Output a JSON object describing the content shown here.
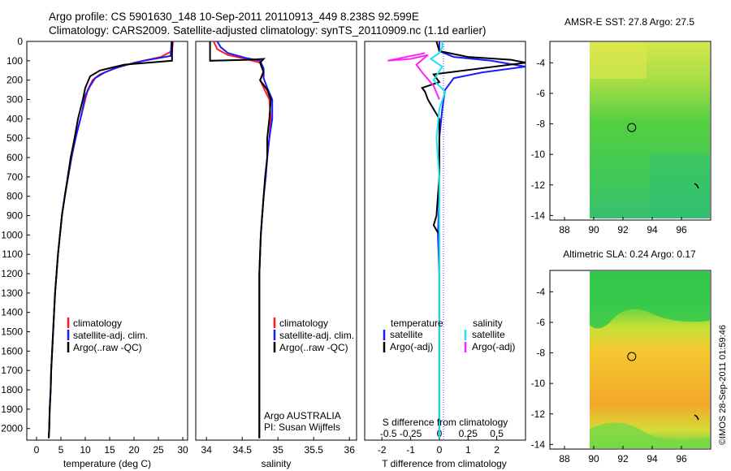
{
  "header": {
    "line1": "Argo profile: CS 5901630_148 10-Sep-2011 20110913_449 8.238S 92.599E",
    "line2": "Climatology: CARS2009. Satellite-adjusted climatology: synTS_20110909.nc (1.1d earlier)"
  },
  "colors": {
    "climatology": "#ff1a1a",
    "satellite": "#1a1aff",
    "argo": "#000000",
    "sal_satellite": "#22e0f0",
    "sal_argo": "#ff22ff"
  },
  "timestamp": "©IMOS 28-Sep-2011 01:59:46",
  "chart_data": [
    {
      "type": "line",
      "id": "temperature",
      "xlabel": "temperature (deg C)",
      "xlim": [
        -2,
        31
      ],
      "ylim": [
        0,
        2060
      ],
      "xticks": [
        0,
        5,
        10,
        15,
        20,
        25,
        30
      ],
      "yticks": [
        0,
        100,
        200,
        300,
        400,
        500,
        600,
        700,
        800,
        900,
        1000,
        1100,
        1200,
        1300,
        1400,
        1500,
        1600,
        1700,
        1800,
        1900,
        2000
      ],
      "legend": [
        "climatology",
        "satellite-adj. clim.",
        "Argo(..raw -QC)"
      ],
      "series": [
        {
          "name": "climatology",
          "color_key": "climatology",
          "points": [
            [
              28,
              0
            ],
            [
              27.8,
              50
            ],
            [
              25.5,
              80
            ],
            [
              20,
              110
            ],
            [
              16,
              140
            ],
            [
              13,
              170
            ],
            [
              11.5,
              200
            ],
            [
              10.5,
              250
            ],
            [
              10,
              300
            ],
            [
              9,
              400
            ],
            [
              8,
              500
            ],
            [
              7.2,
              600
            ],
            [
              6.5,
              700
            ],
            [
              5.8,
              800
            ],
            [
              5.2,
              900
            ],
            [
              4.8,
              1000
            ],
            [
              4.4,
              1100
            ],
            [
              4.1,
              1200
            ],
            [
              3.8,
              1300
            ],
            [
              3.6,
              1400
            ],
            [
              3.4,
              1500
            ],
            [
              3.2,
              1600
            ],
            [
              3,
              1700
            ],
            [
              2.9,
              1800
            ],
            [
              2.7,
              1900
            ],
            [
              2.6,
              2000
            ],
            [
              2.5,
              2050
            ]
          ]
        },
        {
          "name": "satellite-adj. clim.",
          "color_key": "satellite",
          "points": [
            [
              27.7,
              0
            ],
            [
              27.6,
              40
            ],
            [
              27.5,
              75
            ],
            [
              22,
              100
            ],
            [
              17,
              130
            ],
            [
              14,
              160
            ],
            [
              12,
              190
            ],
            [
              11,
              230
            ],
            [
              10,
              280
            ],
            [
              9.2,
              380
            ],
            [
              8.2,
              480
            ],
            [
              7.3,
              580
            ],
            [
              6.6,
              680
            ],
            [
              5.9,
              780
            ],
            [
              5.3,
              880
            ],
            [
              4.8,
              1000
            ],
            [
              4.4,
              1100
            ],
            [
              4.1,
              1200
            ],
            [
              3.8,
              1300
            ],
            [
              3.6,
              1400
            ],
            [
              3.4,
              1500
            ],
            [
              3.2,
              1600
            ],
            [
              3,
              1700
            ],
            [
              2.9,
              1800
            ],
            [
              2.7,
              1900
            ],
            [
              2.6,
              2000
            ],
            [
              2.5,
              2050
            ]
          ]
        },
        {
          "name": "Argo(..raw -QC)",
          "color_key": "argo",
          "points": [
            [
              27.8,
              0
            ],
            [
              27.8,
              100
            ],
            [
              18,
              120
            ],
            [
              13,
              150
            ],
            [
              11,
              180
            ],
            [
              10,
              240
            ],
            [
              9.5,
              300
            ],
            [
              8.5,
              400
            ],
            [
              7.8,
              500
            ],
            [
              7,
              600
            ],
            [
              6.4,
              700
            ],
            [
              5.8,
              800
            ],
            [
              5.2,
              900
            ],
            [
              4.8,
              1000
            ],
            [
              4.4,
              1100
            ],
            [
              4.1,
              1200
            ],
            [
              3.8,
              1300
            ],
            [
              3.6,
              1400
            ],
            [
              3.4,
              1500
            ],
            [
              3.2,
              1600
            ],
            [
              3,
              1700
            ],
            [
              2.9,
              1800
            ],
            [
              2.7,
              1900
            ],
            [
              2.6,
              2000
            ],
            [
              2.5,
              2050
            ]
          ]
        }
      ]
    },
    {
      "type": "line",
      "id": "salinity",
      "xlabel": "salinity",
      "xlim": [
        33.85,
        36.1
      ],
      "ylim": [
        0,
        2060
      ],
      "xticks": [
        34,
        34.5,
        35,
        35.5,
        36
      ],
      "xtick_labels": [
        "34",
        "34.5",
        "35",
        "35.5",
        "36"
      ],
      "legend": [
        "climatology",
        "satellite-adj. clim.",
        "Argo(..raw -QC)"
      ],
      "annotation": [
        "Argo AUSTRALIA",
        "PI: Susan Wijffels"
      ],
      "series": [
        {
          "name": "climatology",
          "color_key": "climatology",
          "points": [
            [
              34.1,
              0
            ],
            [
              34.15,
              40
            ],
            [
              34.3,
              70
            ],
            [
              34.55,
              90
            ],
            [
              34.75,
              110
            ],
            [
              34.8,
              150
            ],
            [
              34.75,
              200
            ],
            [
              34.8,
              240
            ],
            [
              34.88,
              300
            ],
            [
              34.9,
              400
            ],
            [
              34.88,
              500
            ],
            [
              34.85,
              600
            ],
            [
              34.83,
              700
            ],
            [
              34.8,
              800
            ],
            [
              34.78,
              900
            ],
            [
              34.76,
              1000
            ],
            [
              34.75,
              1100
            ],
            [
              34.74,
              1200
            ],
            [
              34.74,
              1400
            ],
            [
              34.74,
              1600
            ],
            [
              34.74,
              1800
            ],
            [
              34.74,
              2050
            ]
          ]
        },
        {
          "name": "satellite-adj. clim.",
          "color_key": "satellite",
          "points": [
            [
              34.15,
              0
            ],
            [
              34.2,
              30
            ],
            [
              34.3,
              60
            ],
            [
              34.55,
              85
            ],
            [
              34.75,
              100
            ],
            [
              34.8,
              140
            ],
            [
              34.8,
              190
            ],
            [
              34.85,
              240
            ],
            [
              34.92,
              300
            ],
            [
              34.92,
              400
            ],
            [
              34.88,
              500
            ],
            [
              34.85,
              600
            ],
            [
              34.83,
              700
            ],
            [
              34.8,
              800
            ],
            [
              34.78,
              900
            ],
            [
              34.76,
              1000
            ],
            [
              34.75,
              1100
            ],
            [
              34.74,
              1200
            ],
            [
              34.74,
              1400
            ],
            [
              34.74,
              1600
            ],
            [
              34.74,
              1800
            ],
            [
              34.74,
              2050
            ]
          ]
        },
        {
          "name": "Argo(..raw -QC)",
          "color_key": "argo",
          "points": [
            [
              34.05,
              0
            ],
            [
              34.05,
              100
            ],
            [
              34.6,
              95
            ],
            [
              34.8,
              90
            ],
            [
              34.75,
              110
            ],
            [
              34.8,
              160
            ],
            [
              34.75,
              200
            ],
            [
              34.85,
              250
            ],
            [
              34.9,
              300
            ],
            [
              34.88,
              400
            ],
            [
              34.85,
              500
            ],
            [
              34.85,
              600
            ],
            [
              34.82,
              700
            ],
            [
              34.8,
              800
            ],
            [
              34.78,
              900
            ],
            [
              34.76,
              1000
            ],
            [
              34.75,
              1100
            ],
            [
              34.74,
              1200
            ],
            [
              34.74,
              1400
            ],
            [
              34.74,
              1600
            ],
            [
              34.74,
              1800
            ],
            [
              34.74,
              2050
            ]
          ]
        }
      ]
    },
    {
      "type": "line",
      "id": "differences",
      "xlabel": "T difference from climatology",
      "xlabel_top": "S difference from climatology",
      "xlim": [
        -2.6,
        3
      ],
      "ylim": [
        0,
        2060
      ],
      "xticks": [
        -2,
        -1,
        0,
        1,
        2
      ],
      "xtick_labels": [
        "-2",
        "-1",
        "0",
        "1",
        "2"
      ],
      "sticks": [
        -2,
        -1,
        0,
        1,
        2
      ],
      "stick_labels": [
        "-0.5",
        "-0.25",
        "0",
        "0.25",
        "0.5"
      ],
      "legend_titles": [
        "temperature",
        "salinity"
      ],
      "legend": [
        "satellite",
        "Argo(-adj)",
        "satellite",
        "Argo(-adj)"
      ],
      "series": [
        {
          "name": "satellite",
          "color_key": "satellite",
          "points": [
            [
              0,
              0
            ],
            [
              0,
              50
            ],
            [
              0.5,
              80
            ],
            [
              1.8,
              100
            ],
            [
              3,
              130
            ],
            [
              1.5,
              160
            ],
            [
              0.5,
              190
            ],
            [
              0.2,
              250
            ],
            [
              0.1,
              350
            ],
            [
              0,
              500
            ],
            [
              0,
              800
            ],
            [
              -0.05,
              1000
            ],
            [
              0,
              1200
            ],
            [
              0,
              1500
            ],
            [
              0,
              2050
            ]
          ]
        },
        {
          "name": "Argo(-adj)",
          "color_key": "argo",
          "points": [
            [
              -0.1,
              0
            ],
            [
              0,
              50
            ],
            [
              1,
              80
            ],
            [
              2.5,
              95
            ],
            [
              3,
              110
            ],
            [
              -0.2,
              170
            ],
            [
              0,
              210
            ],
            [
              -0.6,
              240
            ],
            [
              -0.5,
              260
            ],
            [
              -0.4,
              300
            ],
            [
              0,
              400
            ],
            [
              0,
              700
            ],
            [
              -0.1,
              900
            ],
            [
              -0.2,
              950
            ],
            [
              0,
              1000
            ],
            [
              0,
              1300
            ],
            [
              0,
              1600
            ],
            [
              0,
              2050
            ]
          ]
        },
        {
          "name": "satellite",
          "color_key": "sal_satellite",
          "points": [
            [
              0.1,
              0
            ],
            [
              0.1,
              30
            ],
            [
              0,
              60
            ],
            [
              -0.3,
              90
            ],
            [
              0.1,
              130
            ],
            [
              -0.2,
              200
            ],
            [
              0.2,
              260
            ],
            [
              0,
              350
            ],
            [
              -0.1,
              500
            ],
            [
              0,
              700
            ],
            [
              0,
              900
            ],
            [
              0,
              1200
            ],
            [
              0,
              1600
            ],
            [
              0,
              2050
            ]
          ]
        },
        {
          "name": "Argo(-adj)",
          "color_key": "sal_argo",
          "points": [
            [
              -0.5,
              60
            ],
            [
              -1.8,
              100
            ],
            [
              -1,
              90
            ],
            [
              -0.4,
              70
            ],
            [
              -0.8,
              120
            ],
            [
              -0.6,
              160
            ],
            [
              -0.2,
              230
            ],
            [
              0,
              300
            ]
          ]
        }
      ]
    },
    {
      "type": "heatmap",
      "id": "sst_map",
      "title": "AMSR-E SST: 27.8 Argo: 27.5",
      "xlim": [
        87,
        98
      ],
      "ylim": [
        -14.3,
        -2.6
      ],
      "xticks": [
        88,
        90,
        92,
        94,
        96
      ],
      "yticks": [
        -4,
        -6,
        -8,
        -10,
        -12,
        -14
      ],
      "data_extent_x": [
        90,
        98
      ],
      "float_position": {
        "x": 92.6,
        "y": -8.24
      }
    },
    {
      "type": "heatmap",
      "id": "sla_map",
      "title": "Altimetric SLA: 0.24 Argo: 0.17",
      "xlim": [
        87,
        98
      ],
      "ylim": [
        -14.3,
        -2.6
      ],
      "xticks": [
        88,
        90,
        92,
        94,
        96
      ],
      "yticks": [
        -4,
        -6,
        -8,
        -10,
        -12,
        -14
      ],
      "data_extent_x": [
        90,
        98
      ],
      "float_position": {
        "x": 92.6,
        "y": -8.24
      }
    }
  ]
}
